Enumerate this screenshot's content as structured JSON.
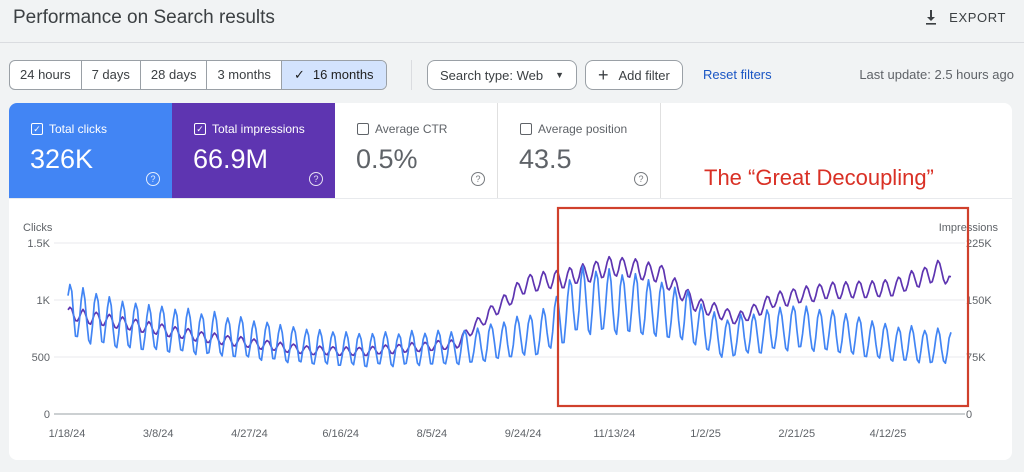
{
  "header": {
    "title": "Performance on Search results",
    "export_label": "EXPORT"
  },
  "date_ranges": [
    {
      "label": "24 hours",
      "active": false
    },
    {
      "label": "7 days",
      "active": false
    },
    {
      "label": "28 days",
      "active": false
    },
    {
      "label": "3 months",
      "active": false
    },
    {
      "label": "16 months",
      "active": true
    }
  ],
  "filters": {
    "search_type": "Search type: Web",
    "add_filter": "Add filter",
    "reset": "Reset filters",
    "last_update": "Last update: 2.5 hours ago"
  },
  "metrics": [
    {
      "label": "Total clicks",
      "value": "326K",
      "checked": true,
      "color": "#4285f4"
    },
    {
      "label": "Total impressions",
      "value": "66.9M",
      "checked": true,
      "color": "#5e35b1"
    },
    {
      "label": "Average CTR",
      "value": "0.5%",
      "checked": false
    },
    {
      "label": "Average position",
      "value": "43.5",
      "checked": false
    }
  ],
  "annotation": "The “Great Decoupling”",
  "chart_data": {
    "type": "line",
    "left_axis": {
      "title": "Clicks",
      "ticks": [
        "0",
        "500",
        "1K",
        "1.5K"
      ],
      "range": [
        0,
        1500
      ]
    },
    "right_axis": {
      "title": "Impressions",
      "ticks": [
        "0",
        "75K",
        "150K",
        "225K"
      ],
      "range": [
        0,
        225000
      ]
    },
    "x_ticks": [
      "1/18/24",
      "3/8/24",
      "4/27/24",
      "6/16/24",
      "8/5/24",
      "9/24/24",
      "11/13/24",
      "1/2/25",
      "2/21/25",
      "4/12/25"
    ],
    "series": [
      {
        "color": "#4285f4",
        "axis": "left",
        "anchors": [
          [
            0,
            900
          ],
          [
            0.06,
            780
          ],
          [
            0.16,
            700
          ],
          [
            0.27,
            590
          ],
          [
            0.33,
            560
          ],
          [
            0.45,
            580
          ],
          [
            0.54,
            720
          ],
          [
            0.58,
            1000
          ],
          [
            0.64,
            960
          ],
          [
            0.7,
            860
          ],
          [
            0.74,
            660
          ],
          [
            0.82,
            760
          ],
          [
            0.87,
            720
          ],
          [
            0.93,
            620
          ],
          [
            1,
            580
          ]
        ],
        "amplitude": [
          [
            0,
            0.32
          ],
          [
            0.5,
            0.3
          ],
          [
            0.58,
            0.34
          ],
          [
            0.74,
            0.3
          ],
          [
            1,
            0.3
          ]
        ]
      },
      {
        "color": "#5e35b1",
        "axis": "right",
        "anchors": [
          [
            0,
            132000
          ],
          [
            0.06,
            120000
          ],
          [
            0.16,
            100000
          ],
          [
            0.27,
            84000
          ],
          [
            0.33,
            82000
          ],
          [
            0.44,
            92000
          ],
          [
            0.46,
            115000
          ],
          [
            0.52,
            172000
          ],
          [
            0.56,
            178000
          ],
          [
            0.62,
            195000
          ],
          [
            0.67,
            185000
          ],
          [
            0.71,
            145000
          ],
          [
            0.76,
            125000
          ],
          [
            0.8,
            150000
          ],
          [
            0.86,
            162000
          ],
          [
            0.93,
            165000
          ],
          [
            0.99,
            190000
          ],
          [
            1,
            170000
          ]
        ],
        "amplitude": [
          [
            0,
            0.08
          ],
          [
            0.5,
            0.08
          ],
          [
            1,
            0.08
          ]
        ]
      }
    ]
  }
}
